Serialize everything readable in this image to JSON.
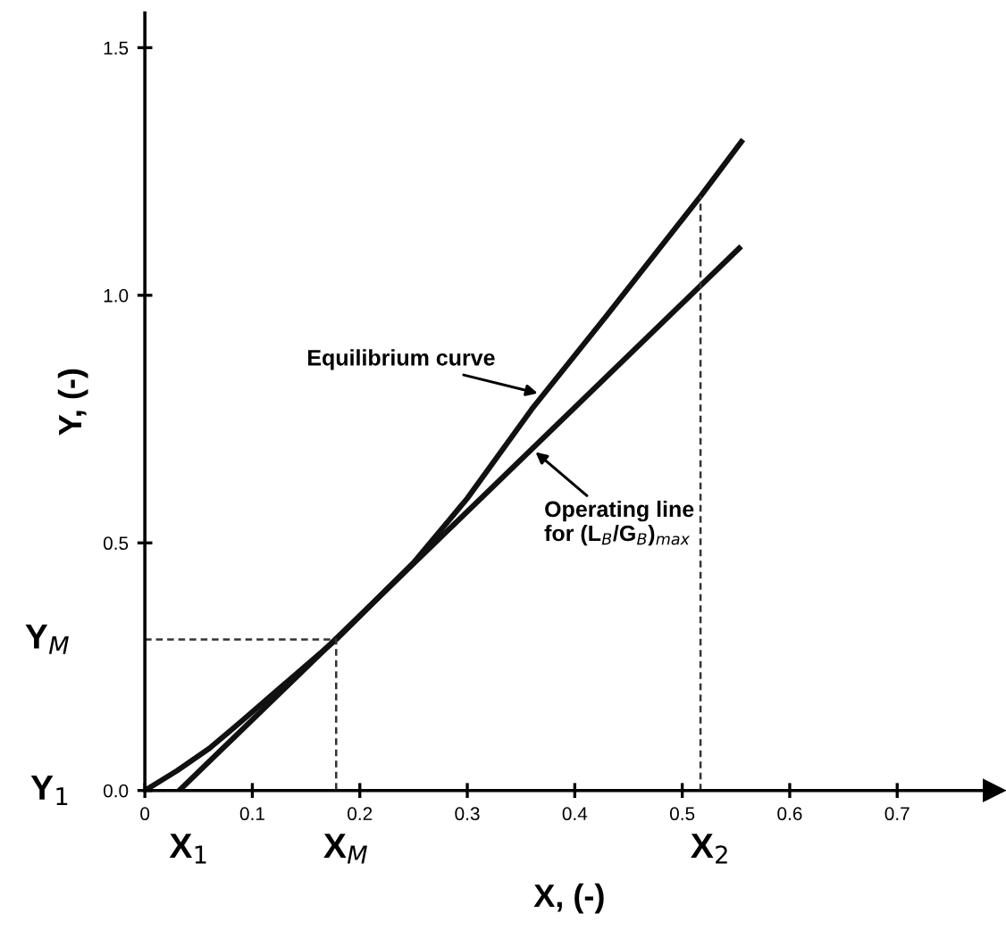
{
  "chart_data": {
    "type": "line",
    "xlabel": "X, (-)",
    "ylabel": "Y, (-)",
    "xlim": [
      0,
      0.79
    ],
    "ylim": [
      0,
      1.57
    ],
    "xticks": [
      0,
      0.1,
      0.2,
      0.3,
      0.4,
      0.5,
      0.6,
      0.7
    ],
    "yticks": [
      {
        "value": 0,
        "label": "0.0"
      },
      {
        "value": 0.5,
        "label": "0.5"
      },
      {
        "value": 1,
        "label": "1.0"
      },
      {
        "value": 1.5,
        "label": "1.5"
      }
    ],
    "grid": false,
    "legend": false,
    "marker": "none",
    "series": [
      {
        "color": "#111111",
        "line_style": "solid",
        "x": [
          0,
          0.03,
          0.06,
          0.09,
          0.13,
          0.178,
          0.25,
          0.3,
          0.36,
          0.43,
          0.517,
          0.555
        ],
        "values": [
          0,
          0.04,
          0.085,
          0.14,
          0.215,
          0.305,
          0.46,
          0.59,
          0.77,
          0.96,
          1.2,
          1.31
        ]
      },
      {
        "color": "#111111",
        "line_style": "solid",
        "x": [
          0.032,
          0.553
        ],
        "values": [
          0,
          1.095
        ]
      },
      {
        "color": "#333333",
        "line_style": "dashed",
        "x": [
          0,
          0.178,
          0.178
        ],
        "values": [
          0.305,
          0.305,
          0
        ]
      },
      {
        "color": "#333333",
        "line_style": "dashed",
        "x": [
          0.517,
          0.517
        ],
        "values": [
          0,
          1.2
        ]
      }
    ],
    "annotations": [
      {
        "text": "Equilibrium curve",
        "x": 0.37,
        "y": 0.8
      },
      {
        "text": "Operating line\nfor (L$_{B}$/G$_{B}$)$_{max}$",
        "x": 0.36,
        "y": 0.69
      },
      {
        "text": "Y$_{1}$",
        "x": 0,
        "y": 0
      },
      {
        "text": "Y$_{M}$",
        "x": 0,
        "y": 0.305
      },
      {
        "text": "X$_{1}$",
        "x": 0.032,
        "y": 0
      },
      {
        "text": "X$_{M}$",
        "x": 0.178,
        "y": 0
      },
      {
        "text": "X$_{2}$",
        "x": 0.517,
        "y": 0
      }
    ]
  }
}
